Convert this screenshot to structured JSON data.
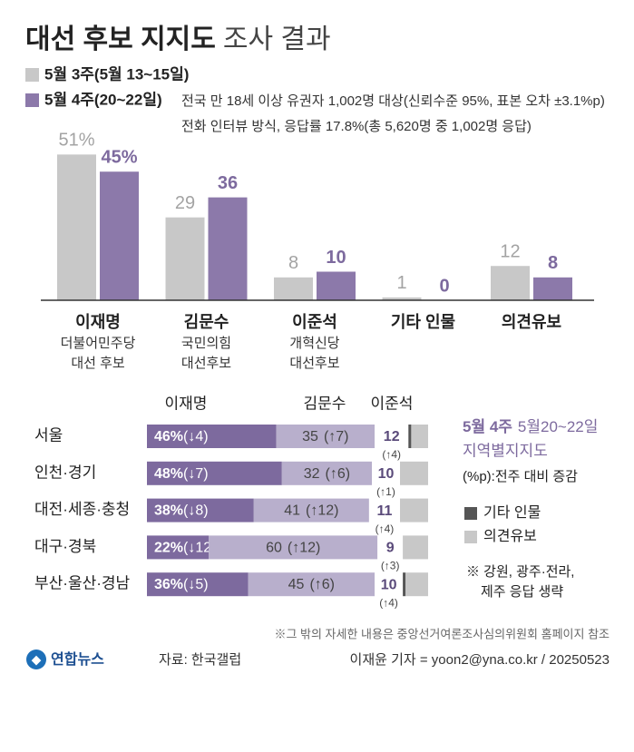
{
  "chart_data": [
    {
      "type": "bar",
      "title": "대선 후보 지지도",
      "subtitle": "조사 결과",
      "notes": [
        "전국 만 18세 이상 유권자 1,002명 대상(신뢰수준 95%, 표본 오차 ±3.1%p)",
        "전화 인터뷰 방식, 응답률 17.8%(총 5,620명 중 1,002명 응답)"
      ],
      "categories": [
        "이재명",
        "김문수",
        "이준석",
        "기타 인물",
        "의견유보"
      ],
      "category_notes": [
        [
          "더불어민주당",
          "대선 후보"
        ],
        [
          "국민의힘",
          "대선후보"
        ],
        [
          "개혁신당",
          "대선후보"
        ],
        [],
        []
      ],
      "series": [
        {
          "name": "5월 3주(5월 13~15일)",
          "color": "#c8c8c8",
          "label_color": "#a3a3a3",
          "values": [
            51,
            29,
            8,
            1,
            12
          ],
          "value_labels": [
            "51%",
            "29",
            "8",
            "1",
            "12"
          ]
        },
        {
          "name": "5월 4주(20~22일)",
          "color": "#8c79aa",
          "label_color": "#7d6a9e",
          "values": [
            45,
            36,
            10,
            0,
            8
          ],
          "value_labels": [
            "45%",
            "36",
            "10",
            "0",
            "8"
          ]
        }
      ]
    },
    {
      "type": "stacked-bar",
      "title": "5월 4주",
      "date": "5월20~22일",
      "subtitle": "지역별지지도",
      "change_note": "(%p):전주 대비 증감",
      "footnote": [
        "※ 강원, 광주·전라,",
        "제주 응답 생략"
      ],
      "categories": [
        "서울",
        "인천·경기",
        "대전·세종·충청",
        "대구·경북",
        "부산·울산·경남"
      ],
      "series": [
        {
          "name": "이재명",
          "color": "#7d6a9e",
          "label_position": "header",
          "values": [
            46,
            48,
            38,
            22,
            36
          ],
          "value_labels": [
            "46%",
            "48%",
            "38%",
            "22%",
            "36%"
          ],
          "change_labels": [
            "(↓4)",
            "(↓7)",
            "(↓8)",
            "(↓12)",
            "(↓5)"
          ]
        },
        {
          "name": "김문수",
          "color": "#b8afcc",
          "label_position": "header",
          "values": [
            35,
            32,
            41,
            60,
            45
          ],
          "change_labels": [
            "(↑7)",
            "(↑6)",
            "(↑12)",
            "(↑12)",
            "(↑6)"
          ]
        },
        {
          "name": "이준석",
          "color": "#ffffff",
          "label_position": "header",
          "values": [
            12,
            10,
            11,
            9,
            10
          ],
          "change_labels": [
            "(↑4)",
            "(↑1)",
            "(↑4)",
            "(↑3)",
            "(↑4)"
          ]
        },
        {
          "name": "기타 인물",
          "color": "#555555",
          "label_position": "legend",
          "values": [
            1,
            0,
            0,
            0,
            1
          ]
        },
        {
          "name": "의견유보",
          "color": "#c8c8c8",
          "label_position": "legend",
          "values": [
            6,
            10,
            10,
            9,
            8
          ]
        }
      ]
    }
  ],
  "footer": {
    "note": "※그 밖의 자세한 내용은 중앙선거여론조사심의위원회 홈페이지 참조",
    "logo": "연합뉴스",
    "source": "자료: 한국갤럽",
    "credit": "이재윤 기자 = yoon2@yna.co.kr / 20250523"
  }
}
